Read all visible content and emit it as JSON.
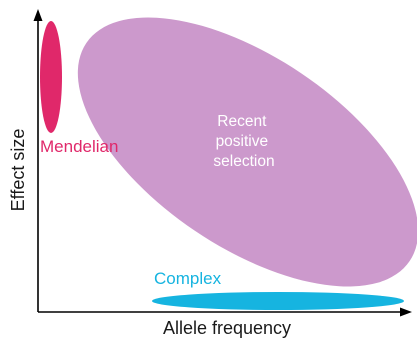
{
  "axes": {
    "x_label": "Allele frequency",
    "y_label": "Effect size"
  },
  "regions": {
    "mendelian": {
      "label": "Mendelian",
      "color": "#e0286a"
    },
    "selection": {
      "label_lines": [
        "Recent",
        "positive",
        "selection"
      ],
      "color": "#cc99cc",
      "text_color": "#ffffff"
    },
    "complex": {
      "label": "Complex",
      "color": "#16b4e0"
    }
  },
  "colors": {
    "axis": "#000000",
    "text": "#1a1a1a"
  }
}
